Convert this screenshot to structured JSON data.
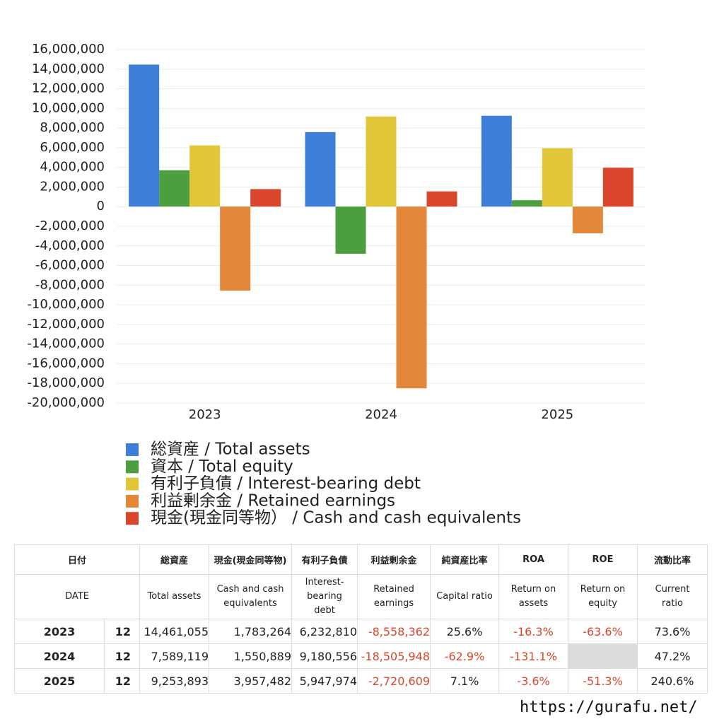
{
  "chart_data": {
    "type": "bar",
    "categories": [
      "2023",
      "2024",
      "2025"
    ],
    "series": [
      {
        "name": "総資産 / Total assets",
        "color": "#3d7ed8",
        "values": [
          14461055,
          7589119,
          9253893
        ]
      },
      {
        "name": "資本 / Total equity",
        "color": "#4c9e3f",
        "values": [
          3700000,
          -4800000,
          650000
        ]
      },
      {
        "name": "有利子負債 / Interest-bearing debt",
        "color": "#e2c63a",
        "values": [
          6232810,
          9180556,
          5947974
        ]
      },
      {
        "name": "利益剰余金 / Retained earnings",
        "color": "#e3883a",
        "values": [
          -8558362,
          -18505948,
          -2720609
        ]
      },
      {
        "name": "現金(現金同等物） /  Cash and cash equivalents",
        "color": "#d9462b",
        "values": [
          1783264,
          1550889,
          3957482
        ]
      }
    ],
    "ylim": [
      -20000000,
      16000000
    ],
    "yticks": [
      {
        "value": -20000000,
        "label": "-20,000,000"
      },
      {
        "value": -18000000,
        "label": "-18,000,000"
      },
      {
        "value": -16000000,
        "label": "-16,000,000"
      },
      {
        "value": -14000000,
        "label": "-14,000,000"
      },
      {
        "value": -12000000,
        "label": "-12,000,000"
      },
      {
        "value": -10000000,
        "label": "-10,000,000"
      },
      {
        "value": -8000000,
        "label": "-8,000,000"
      },
      {
        "value": -6000000,
        "label": "-6,000,000"
      },
      {
        "value": -4000000,
        "label": "-4,000,000"
      },
      {
        "value": -2000000,
        "label": "-2,000,000"
      },
      0,
      {
        "value": 2000000,
        "label": "2,000,000"
      },
      {
        "value": 4000000,
        "label": "4,000,000"
      },
      {
        "value": 6000000,
        "label": "6,000,000"
      },
      {
        "value": 8000000,
        "label": "8,000,000"
      },
      {
        "value": 10000000,
        "label": "10,000,000"
      },
      {
        "value": 12000000,
        "label": "12,000,000"
      },
      {
        "value": 14000000,
        "label": "14,000,000"
      },
      {
        "value": 16000000,
        "label": "16,000,000"
      }
    ],
    "grid": true
  },
  "table": {
    "header1": [
      "日付",
      "総資産",
      "現金(現金同等物)",
      "有利子負債",
      "利益剰余金",
      "純資産比率",
      "ROA",
      "ROE",
      "流動比率"
    ],
    "header2": [
      "DATE",
      "Total assets",
      "Cash and cash\nequivalents",
      "Interest-\nbearing\ndebt",
      "Retained\nearnings",
      "Capital ratio",
      "Return on\nassets",
      "Return on\nequity",
      "Current\nratio"
    ],
    "rows": [
      [
        "2023",
        "12",
        "14,461,055",
        "1,783,264",
        "6,232,810",
        "-8,558,362",
        "25.6%",
        "-16.3%",
        "-63.6%",
        "73.6%"
      ],
      [
        "2024",
        "12",
        "7,589,119",
        "1,550,889",
        "9,180,556",
        "-18,505,948",
        "-62.9%",
        "-131.1%",
        null,
        "47.2%"
      ],
      [
        "2025",
        "12",
        "9,253,893",
        "3,957,482",
        "5,947,974",
        "-2,720,609",
        "7.1%",
        "-3.6%",
        "-51.3%",
        "240.6%"
      ]
    ]
  },
  "footer": "https://gurafu.net/"
}
